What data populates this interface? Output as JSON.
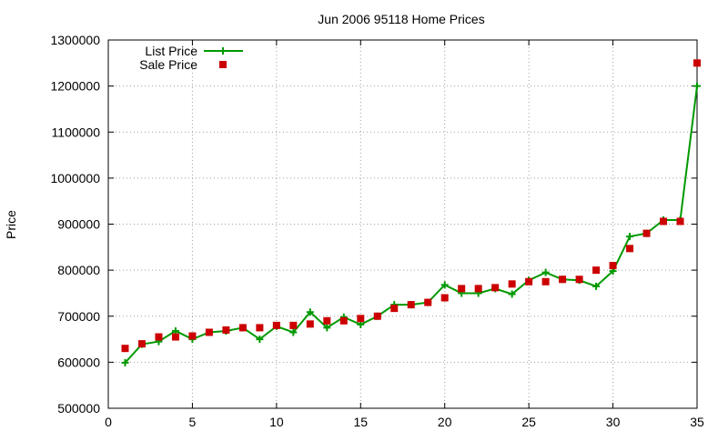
{
  "chart_data": {
    "type": "line",
    "title": "Jun 2006 95118 Home Prices",
    "xlabel": "",
    "ylabel": "Price",
    "xlim": [
      0,
      35
    ],
    "ylim": [
      500000,
      1300000
    ],
    "x_ticks": [
      0,
      5,
      10,
      15,
      20,
      25,
      30,
      35
    ],
    "y_ticks": [
      500000,
      600000,
      700000,
      800000,
      900000,
      1000000,
      1100000,
      1200000,
      1300000
    ],
    "grid": true,
    "legend_position": "top-left",
    "series": [
      {
        "name": "List Price",
        "style": "line-plus",
        "color": "#009900",
        "x": [
          1,
          2,
          3,
          4,
          5,
          6,
          7,
          8,
          9,
          10,
          11,
          12,
          13,
          14,
          15,
          16,
          17,
          18,
          19,
          20,
          21,
          22,
          23,
          24,
          25,
          26,
          27,
          28,
          29,
          30,
          31,
          32,
          33,
          34,
          35
        ],
        "values": [
          599000,
          639000,
          645000,
          668000,
          650000,
          665000,
          668000,
          675000,
          650000,
          678000,
          665000,
          709000,
          675000,
          698000,
          682000,
          700000,
          725000,
          725000,
          730000,
          768000,
          750000,
          750000,
          760000,
          748000,
          778000,
          795000,
          780000,
          778000,
          765000,
          798000,
          873000,
          880000,
          909000,
          909000,
          1200000
        ]
      },
      {
        "name": "Sale Price",
        "style": "square",
        "color": "#cc0000",
        "x": [
          1,
          2,
          3,
          4,
          5,
          6,
          7,
          8,
          9,
          10,
          11,
          12,
          13,
          14,
          15,
          16,
          17,
          18,
          19,
          20,
          21,
          22,
          23,
          24,
          25,
          26,
          27,
          28,
          29,
          30,
          31,
          32,
          33,
          34,
          35
        ],
        "values": [
          630000,
          640000,
          655000,
          655000,
          657000,
          665000,
          670000,
          675000,
          675000,
          680000,
          680000,
          683000,
          690000,
          690000,
          695000,
          700000,
          717000,
          725000,
          730000,
          740000,
          760000,
          760000,
          762000,
          770000,
          775000,
          775000,
          780000,
          780000,
          800000,
          810000,
          847000,
          880000,
          906000,
          906000,
          1250000
        ]
      }
    ]
  }
}
